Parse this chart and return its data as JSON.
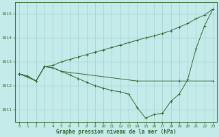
{
  "title": "Graphe pression niveau de la mer (hPa)",
  "background_color": "#c5eaea",
  "grid_color": "#9fcfcf",
  "line_color": "#2d6a2d",
  "xlim": [
    -0.5,
    23.5
  ],
  "ylim": [
    1010.5,
    1015.5
  ],
  "yticks": [
    1011,
    1012,
    1013,
    1014,
    1015
  ],
  "xticks": [
    0,
    1,
    2,
    3,
    4,
    5,
    6,
    7,
    8,
    9,
    10,
    11,
    12,
    13,
    14,
    15,
    16,
    17,
    18,
    19,
    20,
    21,
    22,
    23
  ],
  "line1_x": [
    0,
    1,
    2,
    3,
    4,
    5,
    6,
    7,
    8,
    9,
    10,
    11,
    12,
    13,
    14,
    15,
    16,
    17,
    18,
    19,
    20,
    21,
    22,
    23
  ],
  "line1_y": [
    1012.5,
    1012.4,
    1012.2,
    1012.8,
    1012.75,
    1012.6,
    1012.45,
    1012.3,
    1012.15,
    1012.0,
    1011.9,
    1011.8,
    1011.75,
    1011.65,
    1011.1,
    1010.65,
    1010.8,
    1010.85,
    1011.35,
    1011.65,
    1012.25,
    1013.55,
    1014.5,
    1015.2
  ],
  "line2_x": [
    0,
    2,
    3,
    4,
    5,
    14,
    19,
    23
  ],
  "line2_y": [
    1012.5,
    1012.2,
    1012.8,
    1012.75,
    1012.6,
    1012.2,
    1012.2,
    1012.2
  ],
  "line3_x": [
    0,
    1,
    2,
    3,
    4,
    5,
    6,
    7,
    8,
    9,
    10,
    11,
    12,
    13,
    14,
    15,
    16,
    17,
    18,
    19,
    20,
    21,
    22,
    23
  ],
  "line3_y": [
    1012.5,
    1012.4,
    1012.2,
    1012.8,
    1012.85,
    1013.0,
    1013.1,
    1013.2,
    1013.3,
    1013.4,
    1013.5,
    1013.6,
    1013.7,
    1013.8,
    1013.9,
    1014.0,
    1014.08,
    1014.18,
    1014.3,
    1014.45,
    1014.6,
    1014.8,
    1014.95,
    1015.2
  ]
}
